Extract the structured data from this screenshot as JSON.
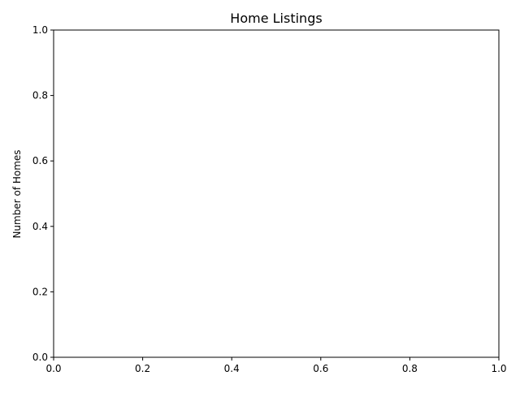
{
  "chart_data": {
    "type": "line",
    "title": "Home Listings",
    "xlabel": "",
    "ylabel": "Number of Homes",
    "xlim": [
      0,
      1
    ],
    "ylim": [
      0,
      1
    ],
    "x_ticks": [
      "0.0",
      "0.2",
      "0.4",
      "0.6",
      "0.8",
      "1.0"
    ],
    "y_ticks": [
      "0.0",
      "0.2",
      "0.4",
      "0.6",
      "0.8",
      "1.0"
    ],
    "grid": false,
    "legend": "none",
    "series": []
  }
}
